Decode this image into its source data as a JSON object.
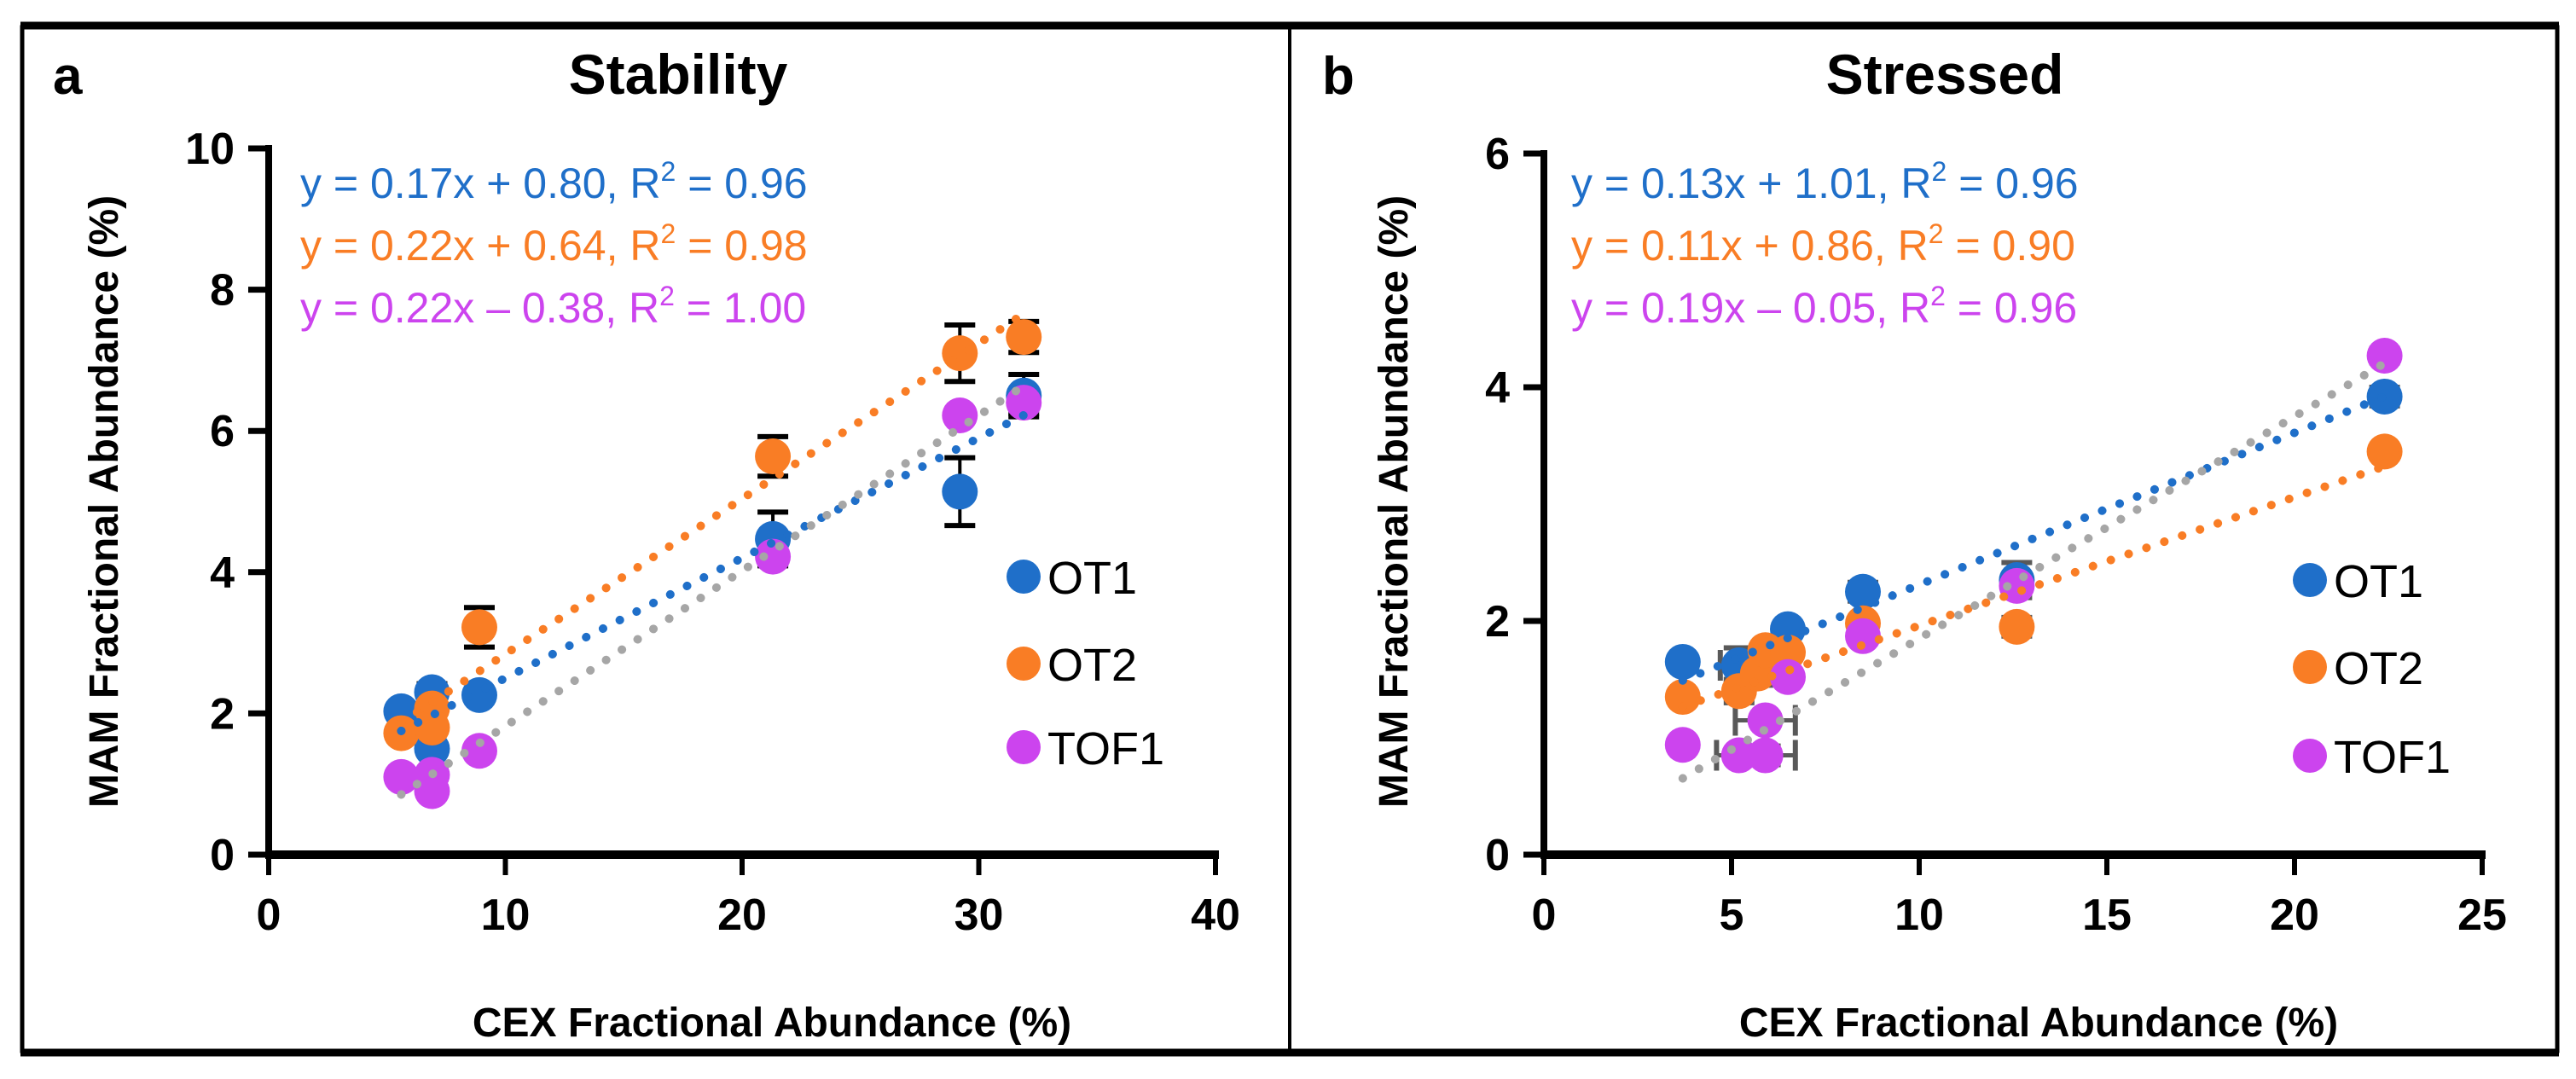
{
  "figure": {
    "frame_color": "#000000"
  },
  "chart_data": [
    {
      "id": "a",
      "type": "scatter",
      "panel_label": "a",
      "title": "Stability",
      "xlabel": "CEX Fractional Abundance (%)",
      "ylabel": "MAM Fractional Abundance (%)",
      "xlim": [
        0,
        40
      ],
      "ylim": [
        0,
        10
      ],
      "xticks": [
        0,
        10,
        20,
        30,
        40
      ],
      "yticks": [
        0,
        2,
        4,
        6,
        8,
        10
      ],
      "xtick_labels": [
        "0",
        "10",
        "20",
        "30",
        "40"
      ],
      "ytick_labels": [
        "0",
        "2",
        "4",
        "6",
        "8",
        "10"
      ],
      "grid": false,
      "legend_position": "right",
      "errorbar_color": "#000000",
      "series": [
        {
          "name": "OT1",
          "color": "#1f6fc9",
          "trendline_color": "#1f6fc9",
          "equation": "y = 0.17x + 0.80, R2 = 0.96",
          "eq_main": "y = 0.17x + 0.80, R",
          "eq_sup": "2",
          "eq_tail": " = 0.96",
          "slope": 0.17,
          "intercept": 0.8,
          "r2": 0.96,
          "points": [
            {
              "x": 5.6,
              "y": 2.03,
              "yerr": 0.0
            },
            {
              "x": 6.9,
              "y": 2.3,
              "yerr": 0.12
            },
            {
              "x": 6.9,
              "y": 1.5,
              "yerr": 0.0
            },
            {
              "x": 8.9,
              "y": 2.26,
              "yerr": 0.0
            },
            {
              "x": 21.3,
              "y": 4.47,
              "yerr": 0.38
            },
            {
              "x": 29.2,
              "y": 5.14,
              "yerr": 0.48
            },
            {
              "x": 31.9,
              "y": 6.5,
              "yerr": 0.3
            }
          ]
        },
        {
          "name": "OT2",
          "color": "#f97d25",
          "trendline_color": "#f97d25",
          "equation": "y = 0.22x + 0.64, R2 = 0.98",
          "eq_main": "y = 0.22x + 0.64, R",
          "eq_sup": "2",
          "eq_tail": " = 0.98",
          "slope": 0.22,
          "intercept": 0.64,
          "r2": 0.98,
          "points": [
            {
              "x": 5.6,
              "y": 1.72,
              "yerr": 0.0
            },
            {
              "x": 6.9,
              "y": 2.07,
              "yerr": 0.0
            },
            {
              "x": 6.9,
              "y": 1.8,
              "yerr": 0.0
            },
            {
              "x": 8.9,
              "y": 3.22,
              "yerr": 0.28
            },
            {
              "x": 21.3,
              "y": 5.64,
              "yerr": 0.28
            },
            {
              "x": 29.2,
              "y": 7.1,
              "yerr": 0.4
            },
            {
              "x": 31.9,
              "y": 7.33,
              "yerr": 0.22
            }
          ]
        },
        {
          "name": "TOF1",
          "color": "#cc44ee",
          "trendline_color": "#a6a6a6",
          "equation": "y = 0.22x – 0.38, R2 = 1.00",
          "eq_main": "y = 0.22x – 0.38, R",
          "eq_sup": "2",
          "eq_tail": " = 1.00",
          "slope": 0.22,
          "intercept": -0.38,
          "r2": 1.0,
          "points": [
            {
              "x": 5.6,
              "y": 1.1,
              "yerr": 0.0
            },
            {
              "x": 6.9,
              "y": 0.9,
              "yerr": 0.0
            },
            {
              "x": 6.9,
              "y": 1.13,
              "yerr": 0.0
            },
            {
              "x": 8.9,
              "y": 1.47,
              "yerr": 0.0
            },
            {
              "x": 21.3,
              "y": 4.22,
              "yerr": 0.1
            },
            {
              "x": 29.2,
              "y": 6.22,
              "yerr": 0.0
            },
            {
              "x": 31.9,
              "y": 6.4,
              "yerr": 0.15
            }
          ]
        }
      ]
    },
    {
      "id": "b",
      "type": "scatter",
      "panel_label": "b",
      "title": "Stressed",
      "xlabel": "CEX Fractional Abundance (%)",
      "ylabel": "MAM Fractional Abundance (%)",
      "xlim": [
        0,
        25
      ],
      "ylim": [
        0,
        6
      ],
      "xticks": [
        0,
        5,
        10,
        15,
        20,
        25
      ],
      "yticks": [
        0,
        2,
        4,
        6
      ],
      "xtick_labels": [
        "0",
        "5",
        "10",
        "15",
        "20",
        "25"
      ],
      "ytick_labels": [
        "0",
        "2",
        "4",
        "6"
      ],
      "grid": false,
      "legend_position": "right",
      "errorbar_color": "#595959",
      "series": [
        {
          "name": "OT1",
          "color": "#1f6fc9",
          "trendline_color": "#1f6fc9",
          "equation": "y = 0.13x + 1.01, R2 = 0.96",
          "eq_main": "y = 0.13x + 1.01, R",
          "eq_sup": "2",
          "eq_tail": " = 0.96",
          "slope": 0.13,
          "intercept": 1.01,
          "r2": 0.96,
          "points": [
            {
              "x": 3.7,
              "y": 1.65,
              "yerr": 0.0,
              "xerr": 0.0
            },
            {
              "x": 5.2,
              "y": 1.62,
              "yerr": 0.15,
              "xerr": 0.5
            },
            {
              "x": 6.5,
              "y": 1.93,
              "yerr": 0.05,
              "xerr": 0.0
            },
            {
              "x": 8.5,
              "y": 2.25,
              "yerr": 0.08,
              "xerr": 0.0
            },
            {
              "x": 12.6,
              "y": 2.35,
              "yerr": 0.15,
              "xerr": 0.0
            },
            {
              "x": 22.4,
              "y": 3.92,
              "yerr": 0.08,
              "xerr": 0.0
            }
          ]
        },
        {
          "name": "OT2",
          "color": "#f97d25",
          "trendline_color": "#f97d25",
          "equation": "y = 0.11x + 0.86, R2 = 0.90",
          "eq_main": "y = 0.11x + 0.86, R",
          "eq_sup": "2",
          "eq_tail": " = 0.90",
          "slope": 0.11,
          "intercept": 0.86,
          "r2": 0.9,
          "points": [
            {
              "x": 3.7,
              "y": 1.35,
              "yerr": 0.05,
              "xerr": 0.0
            },
            {
              "x": 5.2,
              "y": 1.4,
              "yerr": 0.1,
              "xerr": 0.0
            },
            {
              "x": 5.7,
              "y": 1.55,
              "yerr": 0.1,
              "xerr": 0.0
            },
            {
              "x": 5.9,
              "y": 1.75,
              "yerr": 0.05,
              "xerr": 0.0
            },
            {
              "x": 6.5,
              "y": 1.73,
              "yerr": 0.05,
              "xerr": 0.0
            },
            {
              "x": 8.5,
              "y": 1.98,
              "yerr": 0.05,
              "xerr": 0.0
            },
            {
              "x": 12.6,
              "y": 1.95,
              "yerr": 0.08,
              "xerr": 0.0
            },
            {
              "x": 22.4,
              "y": 3.45,
              "yerr": 0.05,
              "xerr": 0.0
            }
          ]
        },
        {
          "name": "TOF1",
          "color": "#cc44ee",
          "trendline_color": "#a6a6a6",
          "equation": "y = 0.19x – 0.05, R2 = 0.96",
          "eq_main": "y = 0.19x – 0.05, R",
          "eq_sup": "2",
          "eq_tail": " = 0.96",
          "slope": 0.19,
          "intercept": -0.05,
          "r2": 0.96,
          "points": [
            {
              "x": 3.7,
              "y": 0.94,
              "yerr": 0.0,
              "xerr": 0.0
            },
            {
              "x": 5.2,
              "y": 0.85,
              "yerr": 0.05,
              "xerr": 0.6
            },
            {
              "x": 5.9,
              "y": 0.85,
              "yerr": 0.08,
              "xerr": 0.8
            },
            {
              "x": 5.9,
              "y": 1.15,
              "yerr": 0.05,
              "xerr": 0.8
            },
            {
              "x": 6.5,
              "y": 1.52,
              "yerr": 0.0,
              "xerr": 0.0
            },
            {
              "x": 8.5,
              "y": 1.87,
              "yerr": 0.0,
              "xerr": 0.0
            },
            {
              "x": 12.6,
              "y": 2.3,
              "yerr": 0.0,
              "xerr": 0.0
            },
            {
              "x": 22.4,
              "y": 4.27,
              "yerr": 0.06,
              "xerr": 0.0
            }
          ]
        }
      ]
    }
  ]
}
